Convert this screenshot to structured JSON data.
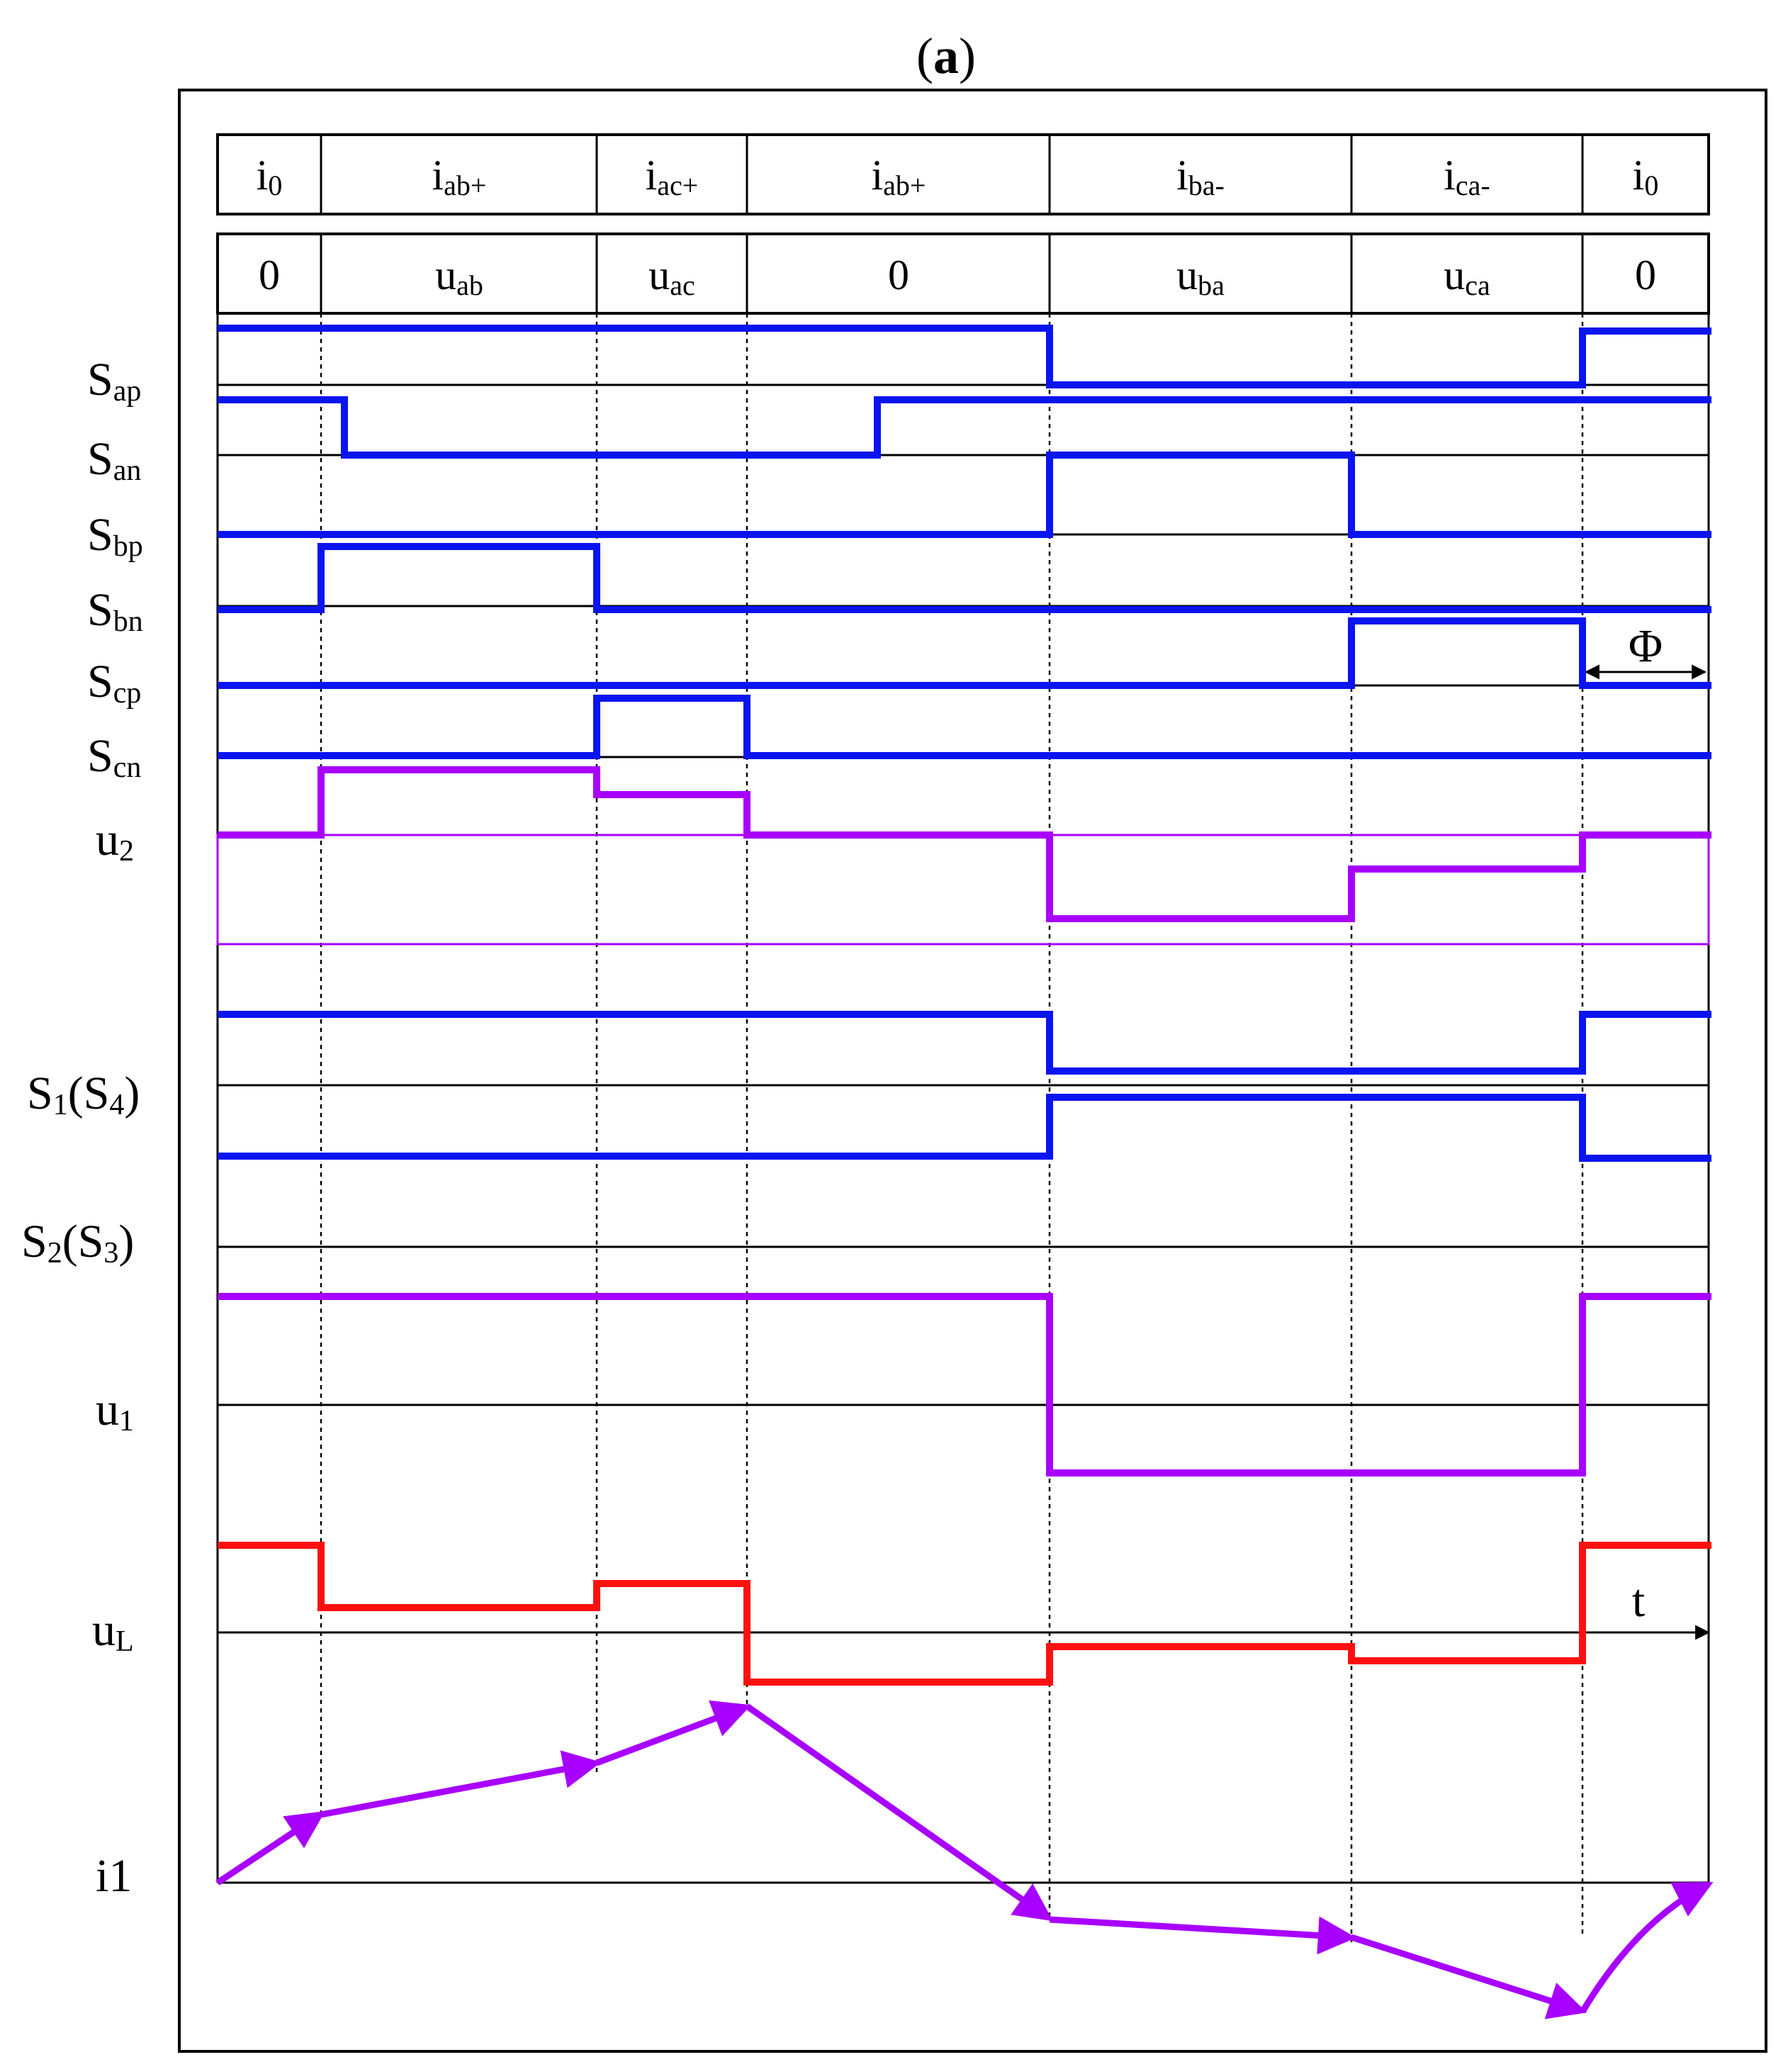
{
  "title_letter": "a",
  "title_open": "(",
  "title_close": ")",
  "phase_row": [
    {
      "main": "i",
      "sub": "0"
    },
    {
      "main": "i",
      "sub": "ab+"
    },
    {
      "main": "i",
      "sub": "ac+"
    },
    {
      "main": "i",
      "sub": "ab+"
    },
    {
      "main": "i",
      "sub": "ba-"
    },
    {
      "main": "i",
      "sub": "ca-"
    },
    {
      "main": "i",
      "sub": "0"
    }
  ],
  "voltage_row": [
    {
      "main": "0",
      "sub": ""
    },
    {
      "main": "u",
      "sub": "ab"
    },
    {
      "main": "u",
      "sub": "ac"
    },
    {
      "main": "0",
      "sub": ""
    },
    {
      "main": "u",
      "sub": "ba"
    },
    {
      "main": "u",
      "sub": "ca"
    },
    {
      "main": "0",
      "sub": ""
    }
  ],
  "signal_labels": [
    {
      "main": "S",
      "sub": "ap",
      "rest": ""
    },
    {
      "main": "S",
      "sub": "an",
      "rest": ""
    },
    {
      "main": "S",
      "sub": "bp",
      "rest": ""
    },
    {
      "main": "S",
      "sub": "bn",
      "rest": ""
    },
    {
      "main": "S",
      "sub": "cp",
      "rest": ""
    },
    {
      "main": "S",
      "sub": "cn",
      "rest": ""
    },
    {
      "main": "u",
      "sub": "2",
      "rest": ""
    },
    {
      "main": "S",
      "sub": "1",
      "rest": "(S",
      "sub2": "4",
      "close": ")"
    },
    {
      "main": "S",
      "sub": "2",
      "rest": "(S",
      "sub2": "3",
      "close": ")"
    },
    {
      "main": "u",
      "sub": "1",
      "rest": ""
    },
    {
      "main": "u",
      "sub": "L",
      "rest": ""
    },
    {
      "main": "i1",
      "sub": "",
      "rest": ""
    }
  ],
  "phi_label": "Φ",
  "time_axis_label": "t",
  "colors": {
    "switch": "#0a14f0",
    "voltage": "#a800ff",
    "inductor": "#ff1010",
    "frame": "#000000"
  }
}
